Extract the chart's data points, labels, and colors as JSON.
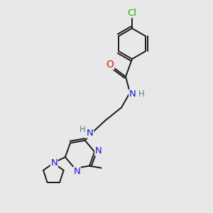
{
  "bg_color": "#e8e8e8",
  "bond_color": "#1a1a1a",
  "N_color": "#1a1acc",
  "O_color": "#cc2200",
  "Cl_color": "#22aa00",
  "H_color": "#4a8888",
  "font_size_atom": 8.5,
  "line_width": 1.4,
  "figsize": [
    3.0,
    3.0
  ],
  "dpi": 100,
  "xlim": [
    0,
    10
  ],
  "ylim": [
    0,
    10
  ]
}
